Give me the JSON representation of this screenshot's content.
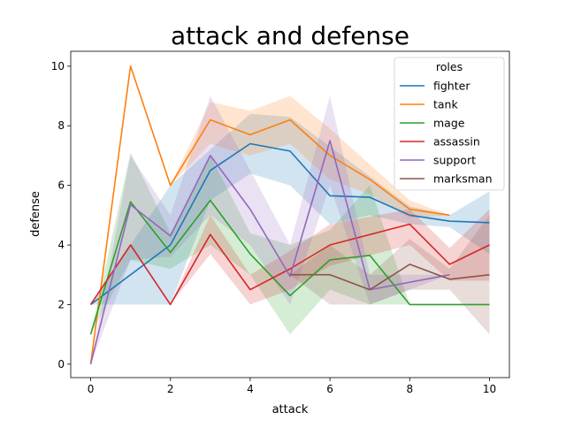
{
  "chart_data": {
    "type": "line",
    "title": "attack and defense",
    "xlabel": "attack",
    "ylabel": "defense",
    "xlim": [
      -0.5,
      10.5
    ],
    "ylim": [
      -0.45,
      10.5
    ],
    "xticks": [
      0,
      2,
      4,
      6,
      8,
      10
    ],
    "yticks": [
      0,
      2,
      4,
      6,
      8,
      10
    ],
    "grid": false,
    "legend": {
      "title": "roles",
      "placement": "top-right"
    },
    "series": [
      {
        "name": "fighter",
        "color": "#1f77b4",
        "x": [
          0,
          2,
          3,
          4,
          5,
          6,
          7,
          8,
          9,
          10
        ],
        "y": [
          2,
          4,
          6.5,
          7.4,
          7.15,
          5.65,
          5.6,
          5,
          4.8,
          4.75
        ],
        "ci_low": [
          2,
          2,
          5.5,
          6.4,
          6.0,
          4.7,
          5.0,
          4.7,
          4.6,
          3.7
        ],
        "ci_high": [
          2,
          6,
          7.2,
          8.4,
          8.3,
          7.3,
          6.3,
          5.3,
          5.0,
          5.8
        ]
      },
      {
        "name": "tank",
        "color": "#ff7f0e",
        "x": [
          0,
          1,
          2,
          3,
          4,
          5,
          6,
          7,
          8,
          9
        ],
        "y": [
          0,
          10,
          6,
          8.2,
          7.7,
          8.2,
          7.0,
          6.2,
          5.2,
          5.0
        ],
        "ci_low": [
          0,
          10,
          6,
          7.4,
          7.0,
          7.4,
          6.2,
          5.7,
          4.9,
          5.0
        ],
        "ci_high": [
          0,
          10,
          6,
          8.8,
          8.5,
          9.0,
          7.9,
          6.7,
          5.5,
          5.0
        ]
      },
      {
        "name": "mage",
        "color": "#2ca02c",
        "x": [
          0,
          1,
          2,
          3,
          4,
          5,
          6,
          7,
          8,
          10
        ],
        "y": [
          1,
          5.45,
          3.75,
          5.5,
          3.7,
          2.3,
          3.5,
          3.65,
          2,
          2
        ],
        "ci_low": [
          1,
          3.5,
          3.2,
          4.0,
          3.0,
          1.0,
          2.5,
          2.0,
          2,
          2
        ],
        "ci_high": [
          1,
          7.1,
          4.4,
          7.0,
          4.4,
          4.0,
          4.5,
          6.0,
          2,
          2
        ]
      },
      {
        "name": "assassin",
        "color": "#d62728",
        "x": [
          0,
          1,
          2,
          3,
          4,
          5,
          6,
          8,
          9,
          10
        ],
        "y": [
          2,
          4,
          2,
          4.35,
          2.5,
          3.2,
          4.0,
          4.7,
          3.35,
          4.0
        ],
        "ci_low": [
          2,
          4,
          2,
          3.7,
          2.0,
          2.5,
          3.3,
          4.0,
          2.8,
          2.8
        ],
        "ci_high": [
          2,
          4,
          2,
          5.0,
          3.0,
          3.8,
          4.7,
          5.2,
          3.9,
          5.2
        ]
      },
      {
        "name": "support",
        "color": "#9467bd",
        "x": [
          0,
          1,
          2,
          3,
          4,
          5,
          6,
          7,
          9
        ],
        "y": [
          0,
          5.35,
          4.3,
          7.0,
          5.2,
          2.95,
          7.5,
          2.5,
          3.0
        ],
        "ci_low": [
          0,
          3.5,
          3.6,
          5.0,
          4.0,
          2.0,
          6.0,
          2.0,
          3.0
        ],
        "ci_high": [
          0,
          7.0,
          5.0,
          9.0,
          6.5,
          4.0,
          9.0,
          3.0,
          3.0
        ]
      },
      {
        "name": "marksman",
        "color": "#8c564b",
        "x": [
          5,
          6,
          7,
          8,
          9,
          10
        ],
        "y": [
          3,
          3,
          2.5,
          3.35,
          2.85,
          3.0
        ],
        "ci_low": [
          3,
          2,
          2.0,
          2.5,
          2.5,
          1.0
        ],
        "ci_high": [
          3,
          4,
          3.0,
          4.2,
          3.2,
          5.0
        ]
      }
    ]
  }
}
